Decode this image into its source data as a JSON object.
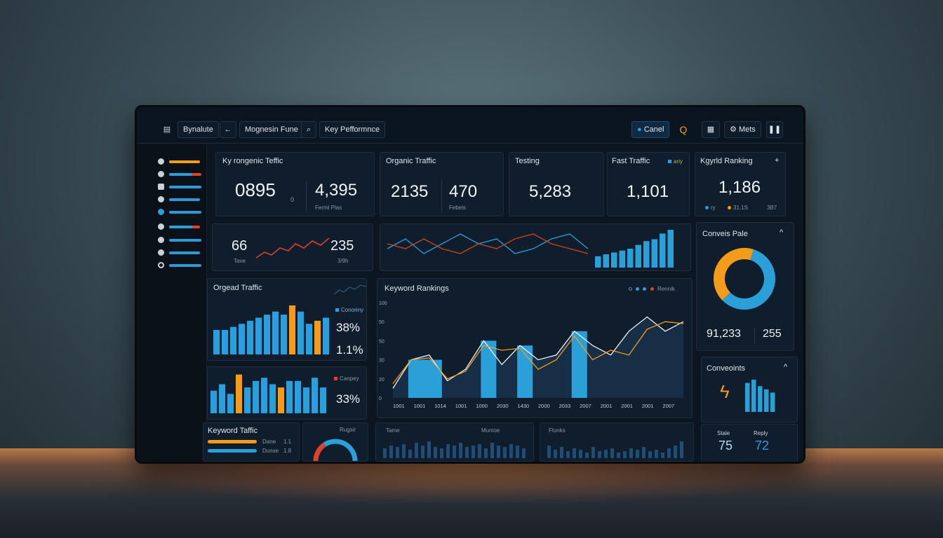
{
  "colors": {
    "blue": "#2a9fd8",
    "orange": "#f39c1a",
    "red": "#d9432f",
    "bg": "#0f1d2c"
  },
  "toolbar": {
    "home_icon": "home-icon",
    "tab1": "Bynalute",
    "back_icon": "arrow-left-icon",
    "tab2": "Mognesin Fune",
    "search_icon": "search-icon",
    "tab3": "Key Pefformnce",
    "cancel_label": "Canel",
    "alert_icon": "search-alert-icon",
    "grid_icon": "grid-icon",
    "mets_label": "Mets",
    "pause_icon": "pause-icon"
  },
  "kpis": {
    "card1": {
      "title": "Ky rongenic Teffic",
      "value1": "0895",
      "value1_suffix": "0",
      "value2": "4,395",
      "sub2": "Ferml Plas"
    },
    "card2": {
      "title": "Organic Traffic",
      "value1": "2135",
      "value2": "470",
      "sub2": "Febels"
    },
    "card3": {
      "title": "Testing",
      "value": "5,283"
    },
    "card4": {
      "title": "Fast Traffic",
      "value": "1,101",
      "legend": "ariy"
    },
    "card5": {
      "title": "Kgyrld Ranking",
      "plus": "+",
      "value": "1,186",
      "legend": [
        "ry",
        "31.1S",
        "3B7"
      ]
    }
  },
  "row2": {
    "left": {
      "value1": "66",
      "sub1": "Tave",
      "value2": "235",
      "sub2": "3/9h"
    },
    "center": {}
  },
  "conversion_rate": {
    "title": "Conveis Pale",
    "value1": "91,233",
    "value2": "255",
    "segments": [
      {
        "label": "blue",
        "fraction": 0.58
      },
      {
        "label": "orange",
        "fraction": 0.42
      }
    ]
  },
  "organic_traffic": {
    "title": "Orgead Traffic",
    "legend1": "Conoriny",
    "pct1": "38%",
    "pct2": "1.1%",
    "legend2": "Canpey",
    "pct3": "33%"
  },
  "keyword_rankings": {
    "title": "Keyword Rankings",
    "legend_label": "Rennik",
    "y_ticks": [
      "0",
      "20",
      "30",
      "50",
      "50",
      "100"
    ],
    "x_ticks": [
      "1001",
      "1001",
      "1014",
      "1001",
      "1000",
      "2030",
      "1430",
      "2000",
      "2033",
      "2007",
      "2001",
      "2001",
      "2001",
      "2007"
    ]
  },
  "conversions": {
    "title": "Conveoints",
    "label1": "Stale",
    "value1": "75",
    "label2": "Reply",
    "value2": "72"
  },
  "keyword_traffic": {
    "title": "Keyword Taffic",
    "row1_label": "Dane",
    "row1_value": "1.1",
    "row2_label": "Dunse",
    "row2_value": "1.8",
    "gauge_label": "Rugsir",
    "gauge_fraction": 0.72
  },
  "bottom_center": {
    "label1": "Tame",
    "label2": "Munioe",
    "label3": "Flunks"
  },
  "chart_data": [
    {
      "type": "bar",
      "title": "Orgead Traffic",
      "series": [
        {
          "values": [
            4,
            4,
            4.5,
            5,
            5.5,
            6,
            6.5,
            7,
            6.5,
            8,
            7,
            5,
            5.5,
            6
          ]
        }
      ]
    },
    {
      "type": "bar",
      "series": [
        {
          "values": [
            3.5,
            4.5,
            3,
            6,
            4,
            5,
            5.5,
            4.5,
            4,
            5,
            5,
            4,
            5.5,
            4
          ]
        }
      ]
    },
    {
      "type": "area",
      "title": "Keyword Rankings",
      "series": [
        {
          "values": [
            10,
            40,
            45,
            18,
            30,
            60,
            35,
            55,
            40,
            45,
            70,
            55,
            45,
            70,
            85,
            70,
            80
          ]
        },
        {
          "values": [
            15,
            40,
            42,
            20,
            28,
            55,
            50,
            52,
            30,
            40,
            65,
            40,
            50,
            45,
            72,
            80,
            78
          ]
        }
      ]
    },
    {
      "type": "line",
      "series": [
        {
          "values": [
            3,
            5,
            2,
            4,
            6,
            4,
            5,
            2,
            3,
            5,
            6,
            3
          ]
        },
        {
          "values": [
            4,
            3,
            5,
            3,
            2,
            4,
            3,
            5,
            6,
            4,
            3,
            2
          ]
        }
      ]
    },
    {
      "type": "bar",
      "title": "Conveoints",
      "series": [
        {
          "values": [
            9,
            10,
            8,
            7,
            6
          ]
        }
      ]
    }
  ]
}
